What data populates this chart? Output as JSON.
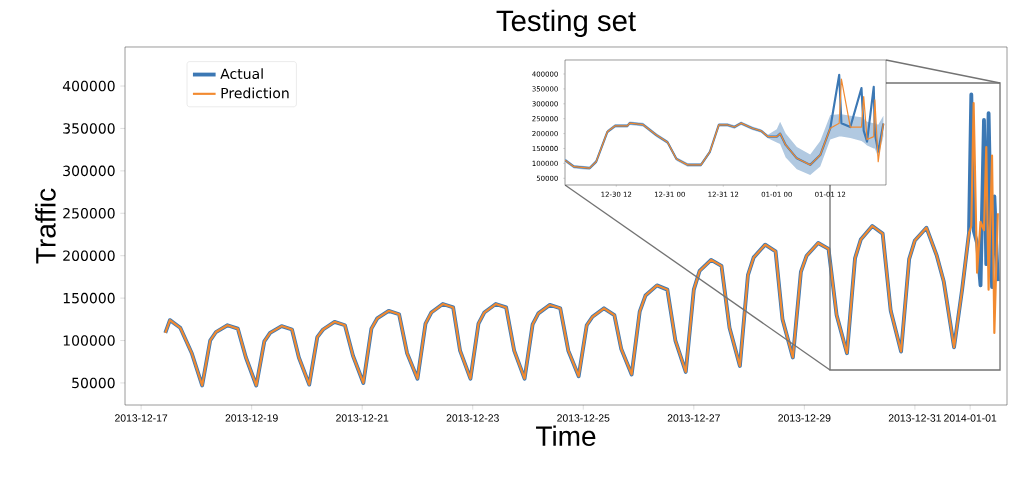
{
  "chart_data": [
    {
      "type": "line",
      "title": "Testing set",
      "xlabel": "Time",
      "ylabel": "Traffic",
      "legend": "top left",
      "xlim": [
        "2013-12-16T17:00",
        "2014-01-01T16:00"
      ],
      "ylim": [
        24000,
        446000
      ],
      "xticks": [
        "2013-12-17",
        "2013-12-19",
        "2013-12-21",
        "2013-12-23",
        "2013-12-25",
        "2013-12-27",
        "2013-12-29",
        "2013-12-31",
        "2014-01-01"
      ],
      "yticks": [
        50000,
        100000,
        150000,
        200000,
        250000,
        300000,
        350000,
        400000
      ],
      "x": [
        "2013-12-17T10:30",
        "2013-12-17T12:30",
        "2013-12-17T17:00",
        "2013-12-17T22:00",
        "2013-12-18T02:30",
        "2013-12-18T06:00",
        "2013-12-18T08:30",
        "2013-12-18T13:30",
        "2013-12-18T18:00",
        "2013-12-18T21:30",
        "2013-12-19T02:00",
        "2013-12-19T05:30",
        "2013-12-19T08:00",
        "2013-12-19T13:00",
        "2013-12-19T17:30",
        "2013-12-19T20:30",
        "2013-12-20T01:00",
        "2013-12-20T04:30",
        "2013-12-20T07:00",
        "2013-12-20T12:00",
        "2013-12-20T16:30",
        "2013-12-20T20:00",
        "2013-12-21T00:30",
        "2013-12-21T04:00",
        "2013-12-21T06:30",
        "2013-12-21T11:30",
        "2013-12-21T16:00",
        "2013-12-21T19:30",
        "2013-12-22T00:00",
        "2013-12-22T03:30",
        "2013-12-22T06:00",
        "2013-12-22T11:00",
        "2013-12-22T15:30",
        "2013-12-22T18:30",
        "2013-12-22T23:00",
        "2013-12-23T02:30",
        "2013-12-23T05:00",
        "2013-12-23T10:00",
        "2013-12-23T14:30",
        "2013-12-23T18:00",
        "2013-12-23T22:30",
        "2013-12-24T02:00",
        "2013-12-24T04:30",
        "2013-12-24T09:30",
        "2013-12-24T14:00",
        "2013-12-24T17:30",
        "2013-12-24T22:00",
        "2013-12-25T01:30",
        "2013-12-25T04:00",
        "2013-12-25T09:00",
        "2013-12-25T13:30",
        "2013-12-25T16:30",
        "2013-12-25T21:00",
        "2013-12-26T00:30",
        "2013-12-26T03:00",
        "2013-12-26T08:00",
        "2013-12-26T12:30",
        "2013-12-26T16:00",
        "2013-12-26T20:30",
        "2013-12-27T00:00",
        "2013-12-27T02:30",
        "2013-12-27T07:30",
        "2013-12-27T12:00",
        "2013-12-27T15:30",
        "2013-12-27T20:00",
        "2013-12-27T23:30",
        "2013-12-28T02:00",
        "2013-12-28T07:00",
        "2013-12-28T11:30",
        "2013-12-28T14:30",
        "2013-12-28T19:00",
        "2013-12-28T22:30",
        "2013-12-29T01:00",
        "2013-12-29T06:00",
        "2013-12-29T10:30",
        "2013-12-29T14:00",
        "2013-12-29T18:30",
        "2013-12-29T22:00",
        "2013-12-30T00:30",
        "2013-12-30T05:30",
        "2013-12-30T10:00",
        "2013-12-30T13:30",
        "2013-12-30T18:00",
        "2013-12-30T21:30",
        "2013-12-31T00:00",
        "2013-12-31T05:00",
        "2013-12-31T09:30",
        "2013-12-31T12:30",
        "2013-12-31T17:00",
        "2013-12-31T20:30",
        "2013-12-31T23:30",
        "2014-01-01T00:30",
        "2014-01-01T01:30",
        "2014-01-01T03:00",
        "2014-01-01T04:30",
        "2014-01-01T06:00",
        "2014-01-01T07:00",
        "2014-01-01T08:00",
        "2014-01-01T09:30",
        "2014-01-01T10:30",
        "2014-01-01T12:00"
      ],
      "series": [
        {
          "name": "Actual",
          "color": "#3c78b4",
          "values": [
            109000,
            124000,
            115000,
            85000,
            47000,
            100000,
            110000,
            118000,
            114000,
            80000,
            47000,
            99000,
            109000,
            117000,
            113000,
            80000,
            48000,
            104000,
            113000,
            122000,
            118000,
            82000,
            50000,
            114000,
            126000,
            135000,
            131000,
            85000,
            55000,
            120000,
            133000,
            143000,
            139000,
            88000,
            55000,
            120000,
            133000,
            143000,
            139000,
            88000,
            55000,
            119000,
            132000,
            142000,
            138000,
            88000,
            58000,
            118000,
            128000,
            138000,
            130000,
            90000,
            60000,
            134000,
            153000,
            165000,
            160000,
            100000,
            63000,
            160000,
            182000,
            195000,
            188000,
            115000,
            70000,
            177000,
            198000,
            213000,
            205000,
            125000,
            80000,
            181000,
            200000,
            215000,
            208000,
            130000,
            85000,
            197000,
            219000,
            235000,
            226000,
            135000,
            87000,
            196000,
            218000,
            233000,
            200000,
            170000,
            92000,
            160000,
            227000,
            390000,
            230000,
            215000,
            165000,
            360000,
            190000,
            368000,
            163000,
            270000,
            170000
          ]
        },
        {
          "name": "Prediction",
          "color": "#f28a30",
          "values": [
            109000,
            124000,
            115000,
            85000,
            47000,
            100000,
            110000,
            118000,
            114000,
            80000,
            47000,
            99000,
            109000,
            117000,
            113000,
            80000,
            48000,
            104000,
            113000,
            122000,
            118000,
            82000,
            50000,
            114000,
            126000,
            135000,
            131000,
            85000,
            55000,
            120000,
            133000,
            143000,
            139000,
            88000,
            55000,
            120000,
            133000,
            143000,
            139000,
            88000,
            55000,
            119000,
            132000,
            142000,
            138000,
            88000,
            58000,
            118000,
            128000,
            138000,
            130000,
            90000,
            60000,
            134000,
            153000,
            165000,
            160000,
            100000,
            63000,
            160000,
            182000,
            195000,
            188000,
            115000,
            70000,
            177000,
            198000,
            213000,
            205000,
            125000,
            80000,
            181000,
            200000,
            215000,
            208000,
            130000,
            85000,
            197000,
            219000,
            235000,
            226000,
            135000,
            87000,
            196000,
            218000,
            233000,
            200000,
            170000,
            92000,
            160000,
            227000,
            235000,
            380000,
            180000,
            240000,
            230000,
            328000,
            160000,
            318000,
            109000,
            250000
          ]
        }
      ]
    },
    {
      "type": "line",
      "xlim": [
        "2013-12-30T00:30",
        "2014-01-02T00:30"
      ],
      "ylim": [
        27500,
        447000
      ],
      "xticks": [
        {
          "value": "2013-12-30T12:00",
          "label": "12-30 12"
        },
        {
          "value": "2013-12-31T00:00",
          "label": "12-31 00"
        },
        {
          "value": "2013-12-31T12:00",
          "label": "12-31 12"
        },
        {
          "value": "2014-01-01T00:00",
          "label": "01-01 00"
        },
        {
          "value": "2014-01-01T12:00",
          "label": "01-01 12"
        }
      ],
      "yticks": [
        50000,
        100000,
        150000,
        200000,
        250000,
        300000,
        350000,
        400000
      ],
      "x": [
        "2013-12-30T00:30",
        "2013-12-30T02:30",
        "2013-12-30T06:00",
        "2013-12-30T07:30",
        "2013-12-30T10:00",
        "2013-12-30T11:45",
        "2013-12-30T14:30",
        "2013-12-30T15:00",
        "2013-12-30T18:00",
        "2013-12-30T21:00",
        "2013-12-30T23:30",
        "2013-12-31T01:30",
        "2013-12-31T04:00",
        "2013-12-31T07:00",
        "2013-12-31T09:00",
        "2013-12-31T11:00",
        "2013-12-31T13:00",
        "2013-12-31T14:30",
        "2013-12-31T16:00",
        "2013-12-31T18:30",
        "2013-12-31T20:30",
        "2013-12-31T22:00",
        "2014-01-01T00:00",
        "2014-01-01T00:45",
        "2014-01-01T02:00",
        "2014-01-01T04:30",
        "2014-01-01T07:30",
        "2014-01-01T09:45",
        "2014-01-01T12:00",
        "2014-01-01T14:00",
        "2014-01-01T14:30",
        "2014-01-01T16:30",
        "2014-01-01T19:00",
        "2014-01-01T19:30",
        "2014-01-01T20:15",
        "2014-01-01T21:45",
        "2014-01-01T22:00",
        "2014-01-01T22:45",
        "2014-01-01T23:55"
      ],
      "series": [
        {
          "color": "#3c78b4",
          "values": [
            111000,
            89000,
            84000,
            106000,
            206000,
            226000,
            226000,
            235000,
            230000,
            195000,
            171000,
            115000,
            95000,
            95000,
            139000,
            229000,
            229000,
            222000,
            235000,
            218000,
            209000,
            190000,
            190000,
            200000,
            162000,
            117000,
            95000,
            128000,
            218000,
            397000,
            235000,
            222000,
            353000,
            210000,
            173000,
            357000,
            200000,
            139000,
            234000
          ],
          "lower": [
            105000,
            83000,
            78000,
            100000,
            200000,
            220000,
            220000,
            229000,
            224000,
            189000,
            165000,
            109000,
            89000,
            89000,
            133000,
            223000,
            223000,
            216000,
            229000,
            212000,
            203000,
            184000,
            170000,
            165000,
            120000,
            80000,
            61000,
            90000,
            180000,
            190000,
            190000,
            185000,
            175000,
            170000,
            160000,
            150000,
            150000,
            120000,
            190000
          ],
          "upper": [
            117000,
            95000,
            90000,
            112000,
            212000,
            232000,
            232000,
            241000,
            236000,
            201000,
            177000,
            121000,
            101000,
            101000,
            145000,
            235000,
            235000,
            228000,
            241000,
            224000,
            215000,
            196000,
            215000,
            240000,
            200000,
            155000,
            130000,
            175000,
            262000,
            265000,
            265000,
            260000,
            255000,
            250000,
            240000,
            235000,
            235000,
            230000,
            260000
          ]
        },
        {
          "color": "#f28a30",
          "values": [
            111000,
            89000,
            84000,
            106000,
            206000,
            226000,
            226000,
            235000,
            230000,
            195000,
            171000,
            115000,
            95000,
            95000,
            139000,
            229000,
            229000,
            222000,
            235000,
            218000,
            209000,
            190000,
            190000,
            200000,
            162000,
            117000,
            95000,
            128000,
            218000,
            235000,
            383000,
            222000,
            222000,
            324000,
            180000,
            190000,
            313000,
            106000,
            234000
          ]
        }
      ]
    }
  ]
}
